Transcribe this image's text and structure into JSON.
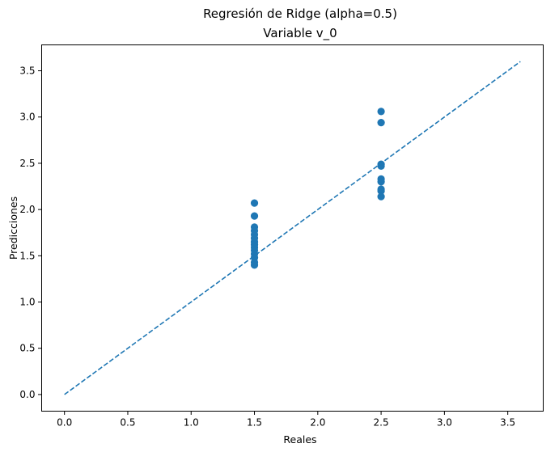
{
  "chart_data": {
    "type": "scatter",
    "title": "Regresión de Ridge (alpha=0.5)",
    "subtitle": "Variable v_0",
    "xlabel": "Reales",
    "ylabel": "Predicciones",
    "xlim": [
      -0.18,
      3.78
    ],
    "ylim": [
      -0.18,
      3.78
    ],
    "x_ticks": [
      0.0,
      0.5,
      1.0,
      1.5,
      2.0,
      2.5,
      3.0,
      3.5
    ],
    "x_tick_labels": [
      "0.0",
      "0.5",
      "1.0",
      "1.5",
      "2.0",
      "2.5",
      "3.0",
      "3.5"
    ],
    "y_ticks": [
      0.0,
      0.5,
      1.0,
      1.5,
      2.0,
      2.5,
      3.0,
      3.5
    ],
    "y_tick_labels": [
      "0.0",
      "0.5",
      "1.0",
      "1.5",
      "2.0",
      "2.5",
      "3.0",
      "3.5"
    ],
    "grid": false,
    "point_color": "#1f77b4",
    "line_color": "#1f77b4",
    "reference_line": {
      "x": [
        0.0,
        3.6
      ],
      "y": [
        0.0,
        3.6
      ],
      "style": "dashed"
    },
    "points": [
      {
        "x": 1.5,
        "y": 2.07
      },
      {
        "x": 1.5,
        "y": 1.93
      },
      {
        "x": 1.5,
        "y": 1.81
      },
      {
        "x": 1.5,
        "y": 1.77
      },
      {
        "x": 1.5,
        "y": 1.73
      },
      {
        "x": 1.5,
        "y": 1.69
      },
      {
        "x": 1.5,
        "y": 1.65
      },
      {
        "x": 1.5,
        "y": 1.62
      },
      {
        "x": 1.5,
        "y": 1.59
      },
      {
        "x": 1.5,
        "y": 1.56
      },
      {
        "x": 1.5,
        "y": 1.52
      },
      {
        "x": 1.5,
        "y": 1.48
      },
      {
        "x": 1.5,
        "y": 1.43
      },
      {
        "x": 1.5,
        "y": 1.4
      },
      {
        "x": 2.5,
        "y": 3.06
      },
      {
        "x": 2.5,
        "y": 2.94
      },
      {
        "x": 2.5,
        "y": 2.49
      },
      {
        "x": 2.5,
        "y": 2.47
      },
      {
        "x": 2.5,
        "y": 2.33
      },
      {
        "x": 2.5,
        "y": 2.3
      },
      {
        "x": 2.5,
        "y": 2.22
      },
      {
        "x": 2.5,
        "y": 2.2
      },
      {
        "x": 2.5,
        "y": 2.14
      }
    ]
  }
}
